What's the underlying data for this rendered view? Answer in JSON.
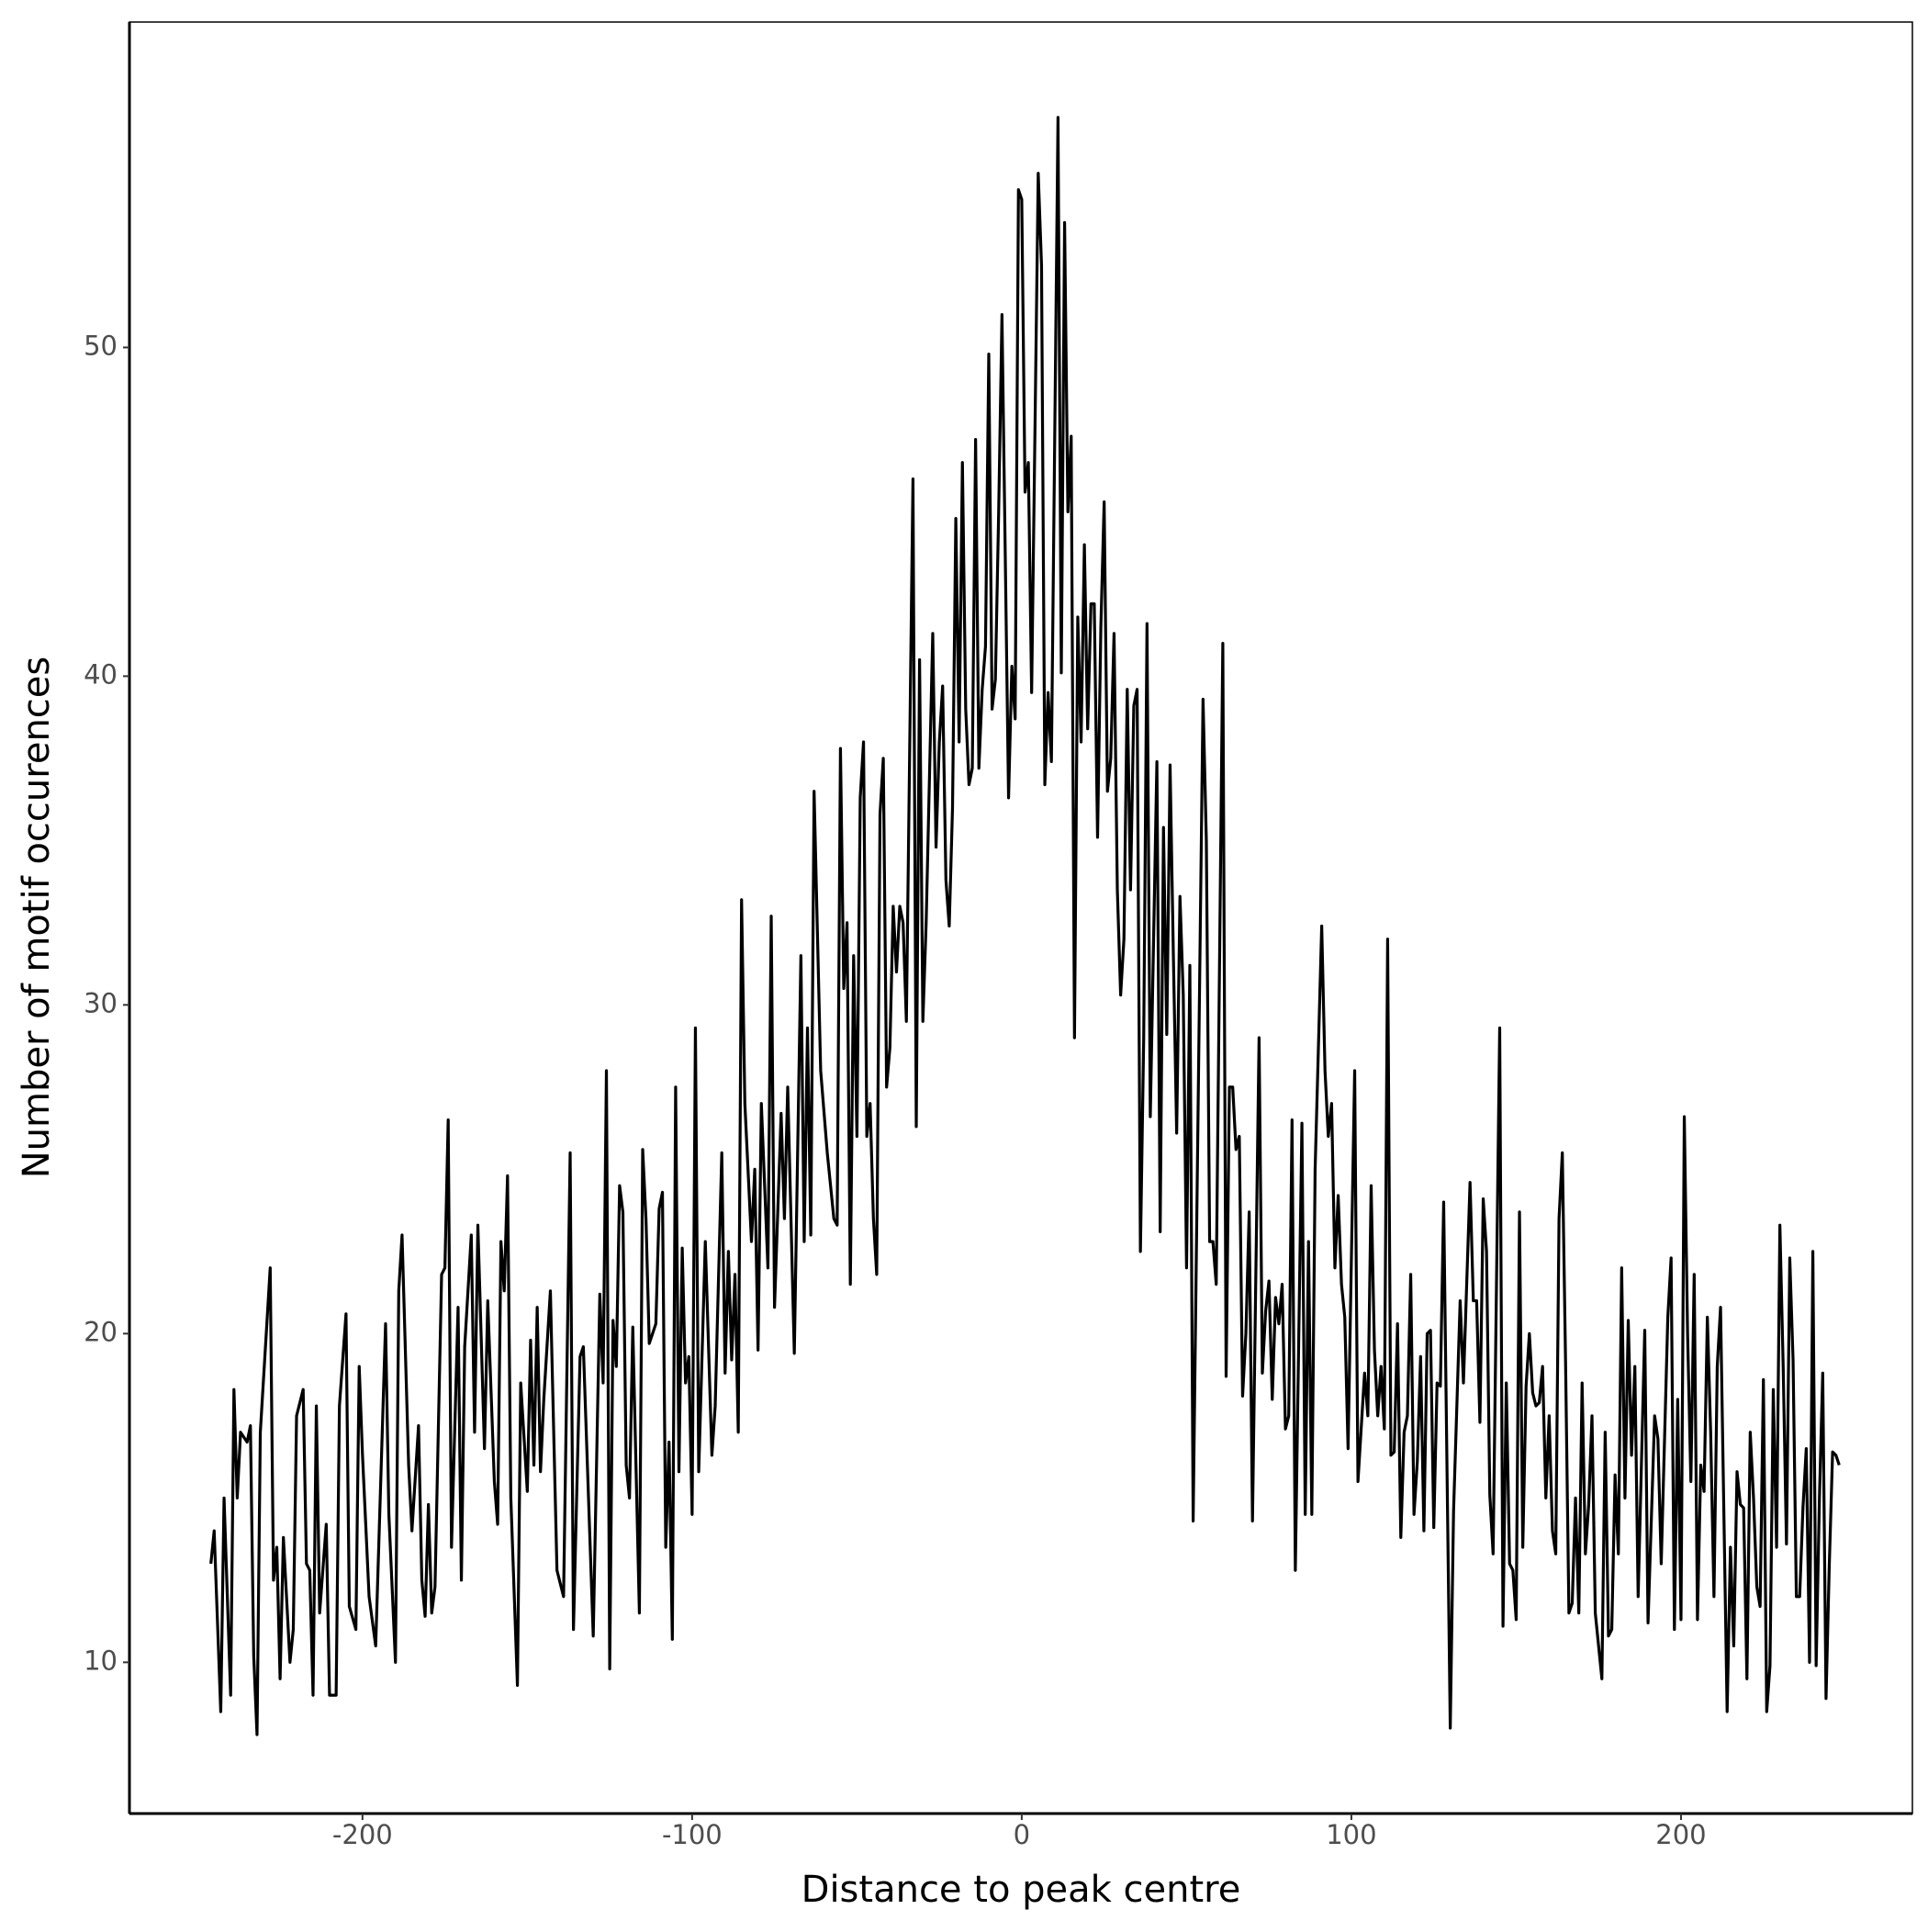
{
  "chart_data": {
    "type": "line",
    "x_label": "Distance to peak centre",
    "y_label": "Number of motif occurences",
    "color": "#000000",
    "xlim": [
      -270.7,
      270.2
    ],
    "ylim": [
      5.4,
      59.9
    ],
    "xticks": [
      -200,
      -100,
      0,
      100,
      200
    ],
    "yticks": [
      10,
      20,
      30,
      40,
      50
    ],
    "grid": false,
    "x": [
      -246,
      -245,
      -243,
      -242,
      -240,
      -239,
      -238,
      -237,
      -235,
      -234,
      -233,
      -232,
      -231,
      -228,
      -227,
      -226,
      -225,
      -224,
      -222,
      -221,
      -220,
      -218,
      -217,
      -216,
      -215,
      -214,
      -213,
      -211,
      -210,
      -208,
      -207,
      -205,
      -204,
      -202,
      -201,
      -200,
      -198,
      -196,
      -193,
      -192,
      -190,
      -189,
      -188,
      -186,
      -185,
      -183,
      -182,
      -181,
      -180,
      -179,
      -178,
      -176,
      -175,
      -174,
      -173,
      -171,
      -170,
      -169,
      -167,
      -166,
      -165,
      -163,
      -162,
      -160,
      -159,
      -158,
      -157,
      -156,
      -155,
      -153,
      -152,
      -150,
      -149,
      -148,
      -147,
      -146,
      -145,
      -143,
      -141,
      -139,
      -137,
      -136,
      -134,
      -133,
      -130,
      -128,
      -127,
      -126,
      -125,
      -124,
      -123,
      -122,
      -121,
      -120,
      -119,
      -118,
      -116,
      -115,
      -114,
      -113,
      -111,
      -110,
      -109,
      -108,
      -107,
      -106,
      -105,
      -104,
      -103,
      -102,
      -101,
      -100,
      -99,
      -98,
      -96,
      -94,
      -93,
      -91,
      -90,
      -89,
      -88,
      -87,
      -86,
      -85,
      -84,
      -82,
      -81,
      -80,
      -79,
      -78,
      -77,
      -76,
      -75,
      -73,
      -72,
      -71,
      -69,
      -67,
      -66,
      -65,
      -64,
      -63,
      -61,
      -59,
      -57,
      -56,
      -55,
      -54,
      -53,
      -52,
      -51,
      -50,
      -49,
      -48,
      -47,
      -46,
      -45,
      -44,
      -43,
      -42,
      -41,
      -40,
      -39,
      -38,
      -37,
      -36,
      -35,
      -33,
      -32,
      -31,
      -30,
      -29,
      -27,
      -26,
      -25,
      -24,
      -23,
      -22,
      -21,
      -20,
      -19,
      -18,
      -17,
      -16,
      -15,
      -14,
      -13,
      -12,
      -11,
      -10,
      -9,
      -8,
      -7,
      -6,
      -4,
      -3,
      -2,
      -1,
      0,
      1,
      2,
      3,
      5,
      6,
      7,
      8,
      9,
      11,
      12,
      13,
      14,
      15,
      16,
      17,
      18,
      19,
      20,
      21,
      22,
      23,
      24,
      25,
      26,
      27,
      28,
      29,
      30,
      31,
      32,
      33,
      34,
      35,
      36,
      37,
      38,
      39,
      41,
      42,
      43,
      44,
      45,
      46,
      47,
      48,
      49,
      50,
      51,
      52,
      55,
      56,
      57,
      58,
      59,
      61,
      62,
      63,
      64,
      65,
      66,
      67,
      68,
      69,
      70,
      72,
      73,
      74,
      75,
      76,
      77,
      78,
      79,
      80,
      81,
      82,
      83,
      85,
      86,
      87,
      88,
      89,
      91,
      92,
      93,
      94,
      95,
      96,
      97,
      98,
      99,
      101,
      102,
      104,
      105,
      106,
      107,
      108,
      109,
      110,
      111,
      112,
      113,
      114,
      115,
      116,
      117,
      118,
      119,
      120,
      121,
      122,
      123,
      124,
      125,
      126,
      127,
      128,
      130,
      131,
      133,
      134,
      136,
      137,
      138,
      139,
      140,
      141,
      142,
      143,
      145,
      146,
      147,
      148,
      149,
      150,
      151,
      152,
      153,
      154,
      155,
      156,
      157,
      158,
      159,
      160,
      161,
      162,
      163,
      164,
      165,
      166,
      167,
      168,
      169,
      170,
      171,
      172,
      173,
      174,
      176,
      177,
      178,
      179,
      180,
      181,
      182,
      183,
      184,
      185,
      186,
      187,
      189,
      190,
      192,
      193,
      194,
      196,
      197,
      198,
      199,
      200,
      201,
      202,
      203,
      204,
      205,
      206,
      207,
      208,
      209,
      210,
      211,
      212,
      213,
      214,
      215,
      216,
      217,
      218,
      219,
      220,
      221,
      222,
      223,
      224,
      225,
      226,
      227,
      228,
      229,
      230,
      231,
      232,
      233,
      234,
      235,
      236,
      237,
      238,
      239,
      240,
      241,
      242,
      243,
      244,
      245,
      246,
      247,
      248
    ],
    "values": [
      13,
      14,
      8.5,
      15,
      9,
      18.3,
      15,
      17,
      16.7,
      17.2,
      10.2,
      7.8,
      17,
      22,
      12.5,
      13.5,
      9.5,
      13.8,
      10,
      11,
      17.5,
      18.3,
      13,
      12.8,
      9,
      17.8,
      11.5,
      14.2,
      9,
      9,
      17.8,
      20.6,
      11.7,
      11,
      19,
      16.3,
      12,
      10.5,
      20.3,
      14.5,
      10,
      21.3,
      23,
      16,
      14,
      17.2,
      12.5,
      11.4,
      14.8,
      11.5,
      12.3,
      21.8,
      22,
      26.5,
      13.5,
      20.8,
      12.5,
      19.6,
      23,
      17,
      23.3,
      16.5,
      21,
      15.5,
      14.2,
      22.8,
      21.3,
      24.8,
      15,
      9.3,
      18.5,
      15.2,
      19.8,
      16,
      20.8,
      15.8,
      18,
      21.3,
      12.8,
      12,
      25.5,
      11,
      19.3,
      19.6,
      10.8,
      21.2,
      18.5,
      28,
      9.8,
      20.4,
      19,
      24.5,
      23.7,
      16,
      15,
      20.2,
      11.5,
      25.6,
      23.5,
      19.7,
      20.3,
      23.8,
      24.3,
      13.5,
      16.7,
      10.7,
      27.5,
      15.8,
      22.6,
      18.5,
      19.3,
      14.5,
      29.3,
      15.8,
      22.8,
      16.3,
      17.8,
      25.5,
      18.8,
      22.5,
      19.2,
      21.8,
      17,
      33.2,
      27,
      22.8,
      25,
      19.5,
      27,
      24.5,
      22,
      32.7,
      20.8,
      26.7,
      23.5,
      27.5,
      19.4,
      31.5,
      22.8,
      29.3,
      23,
      36.5,
      28,
      25.5,
      23.5,
      23.3,
      37.8,
      30.5,
      32.5,
      21.5,
      31.5,
      26,
      36.3,
      38,
      26,
      27,
      23.5,
      21.8,
      35.8,
      37.5,
      27.5,
      28.7,
      33,
      31,
      33,
      32.5,
      29.5,
      46,
      26.3,
      40.5,
      29.5,
      32.5,
      41.3,
      34.8,
      38,
      39.7,
      33.8,
      32.4,
      36,
      44.8,
      38,
      46.5,
      39,
      36.7,
      37.2,
      47.2,
      37.2,
      39.6,
      40.9,
      49.8,
      39,
      39.9,
      45,
      51,
      36.3,
      40.3,
      38.7,
      54.8,
      54.5,
      45.6,
      46.5,
      39.5,
      55.3,
      52.5,
      36.7,
      39.5,
      37.4,
      57,
      40.1,
      53.8,
      45,
      47.3,
      29,
      41.8,
      38,
      44,
      38.4,
      42.2,
      42.2,
      35.1,
      41.5,
      45.3,
      36.5,
      37.5,
      41.3,
      33.5,
      30.3,
      32,
      39.6,
      33.5,
      39.1,
      39.6,
      22.5,
      29,
      41.6,
      26.6,
      37.4,
      23.1,
      35.4,
      29.1,
      37.3,
      31.5,
      26.1,
      33.3,
      30.3,
      22,
      31.2,
      14.3,
      39.3,
      35,
      22.8,
      22.8,
      21.5,
      41,
      18.7,
      27.5,
      27.5,
      25.6,
      26,
      18.1,
      20,
      23.7,
      14.3,
      29,
      18.8,
      20.7,
      21.6,
      18,
      21.1,
      20.3,
      21.5,
      17.1,
      17.5,
      26.5,
      12.8,
      26.4,
      14.5,
      22.8,
      14.5,
      25,
      32.4,
      28,
      26,
      27,
      22,
      24.2,
      21.5,
      20.5,
      16.5,
      28,
      15.5,
      18.8,
      17.5,
      24.5,
      19.5,
      17.5,
      19,
      17.1,
      32,
      16.3,
      16.4,
      20.3,
      13.8,
      17,
      17.5,
      21.8,
      14.5,
      16.1,
      19.3,
      14,
      20,
      20.1,
      14.1,
      18.5,
      18.4,
      24,
      8,
      14.6,
      21,
      18.5,
      24.6,
      21,
      21,
      17.3,
      24.1,
      22.5,
      15.1,
      13.3,
      29.3,
      11.1,
      18.5,
      13,
      12.8,
      11.3,
      23.7,
      13.5,
      18.4,
      20,
      18.2,
      17.8,
      17.9,
      19,
      15,
      17.5,
      14,
      13.3,
      23.5,
      25.5,
      19,
      11.5,
      11.8,
      15,
      11.5,
      18.5,
      13.3,
      14.8,
      17.5,
      11.5,
      9.5,
      17,
      10.8,
      11,
      15.7,
      13.3,
      22,
      15,
      20.4,
      16.3,
      19,
      12,
      20.1,
      11.2,
      17.5,
      16.8,
      13,
      20.5,
      22.3,
      11,
      18,
      11.3,
      26.6,
      20,
      15.5,
      21.8,
      11.3,
      16,
      15.2,
      20.5,
      17,
      12,
      19,
      20.8,
      14.6,
      8.5,
      13.5,
      10.5,
      15.8,
      14.8,
      14.7,
      9.5,
      17,
      15,
      12.3,
      11.7,
      18.6,
      8.5,
      9.9,
      18.3,
      13.5,
      23.3,
      19,
      13.6,
      22.3,
      19.2,
      12,
      12,
      14.7,
      16.5,
      10,
      22.5,
      9.9,
      15,
      18.8,
      8.9,
      13,
      16.4,
      16.3,
      16
    ]
  }
}
